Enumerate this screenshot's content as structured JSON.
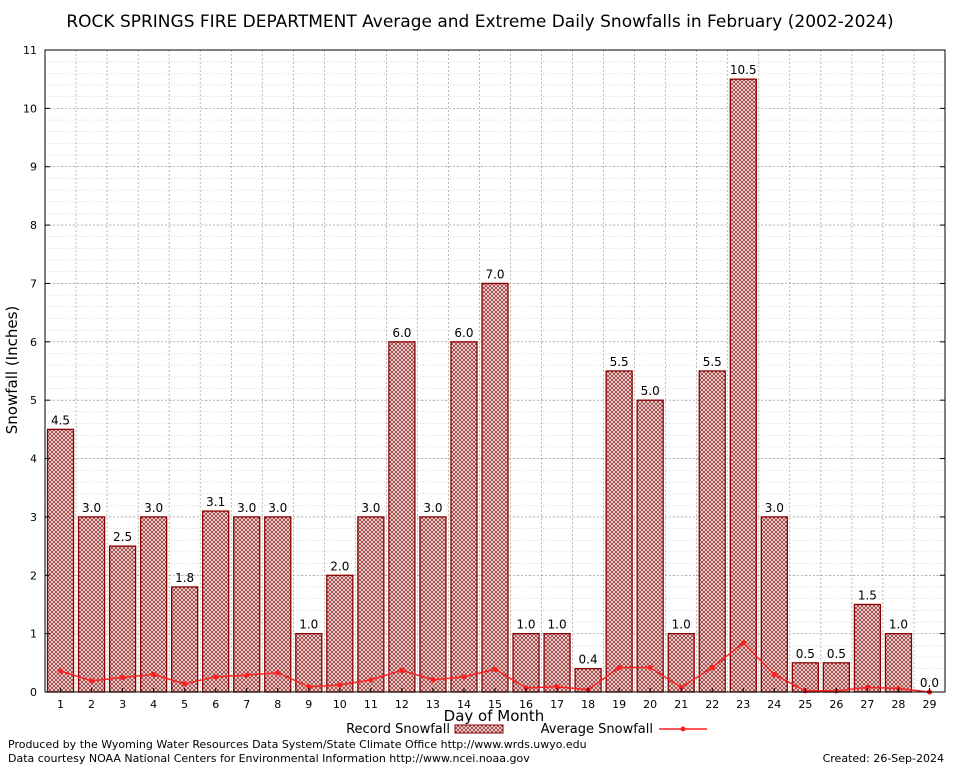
{
  "chart_data": {
    "type": "bar",
    "title": "ROCK SPRINGS FIRE DEPARTMENT Average and Extreme Daily Snowfalls in February (2002-2024)",
    "xlabel": "Day of Month",
    "ylabel": "Snowfall (Inches)",
    "ylim": [
      0,
      11
    ],
    "yticks": [
      "0",
      "1",
      "2",
      "3",
      "4",
      "5",
      "6",
      "7",
      "8",
      "9",
      "10",
      "11"
    ],
    "categories": [
      "1",
      "2",
      "3",
      "4",
      "5",
      "6",
      "7",
      "8",
      "9",
      "10",
      "11",
      "12",
      "13",
      "14",
      "15",
      "16",
      "17",
      "18",
      "19",
      "20",
      "21",
      "22",
      "23",
      "24",
      "25",
      "26",
      "27",
      "28",
      "29"
    ],
    "series": [
      {
        "name": "Record Snowfall",
        "kind": "bar",
        "values": [
          4.5,
          3.0,
          2.5,
          3.0,
          1.8,
          3.1,
          3.0,
          3.0,
          1.0,
          2.0,
          3.0,
          6.0,
          3.0,
          6.0,
          7.0,
          1.0,
          1.0,
          0.4,
          5.5,
          5.0,
          1.0,
          5.5,
          10.5,
          3.0,
          0.5,
          0.5,
          1.5,
          1.0,
          0.0
        ],
        "labels": [
          "4.5",
          "3.0",
          "2.5",
          "3.0",
          "1.8",
          "3.1",
          "3.0",
          "3.0",
          "1.0",
          "2.0",
          "3.0",
          "6.0",
          "3.0",
          "6.0",
          "7.0",
          "1.0",
          "1.0",
          "0.4",
          "5.5",
          "5.0",
          "1.0",
          "5.5",
          "10.5",
          "3.0",
          "0.5",
          "0.5",
          "1.5",
          "1.0",
          "0.0"
        ],
        "color": "#8b0000"
      },
      {
        "name": "Average Snowfall",
        "kind": "line",
        "values": [
          0.36,
          0.19,
          0.25,
          0.3,
          0.14,
          0.26,
          0.29,
          0.33,
          0.09,
          0.12,
          0.21,
          0.37,
          0.21,
          0.26,
          0.39,
          0.07,
          0.09,
          0.04,
          0.42,
          0.42,
          0.08,
          0.42,
          0.84,
          0.3,
          0.02,
          0.02,
          0.08,
          0.06,
          0.0
        ],
        "color": "#ff2020"
      }
    ],
    "grid": true,
    "legend": "bottom-center"
  },
  "footer": {
    "produced_by": "Produced by the Wyoming Water Resources Data System/State Climate Office http://www.wrds.uwyo.edu",
    "data_courtesy": "Data courtesy NOAA National Centers for Environmental Information http://www.ncei.noaa.gov",
    "created": "Created:  26-Sep-2024"
  }
}
